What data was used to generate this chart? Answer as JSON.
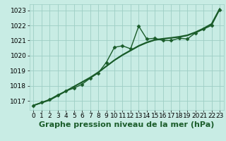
{
  "background_color": "#c8ece4",
  "grid_color": "#9dcec4",
  "line_color": "#1a5c2a",
  "xlabel": "Graphe pression niveau de la mer (hPa)",
  "xlabel_fontsize": 8,
  "tick_fontsize": 6.5,
  "xlim": [
    -0.5,
    23.5
  ],
  "ylim": [
    1016.4,
    1023.4
  ],
  "yticks": [
    1017,
    1018,
    1019,
    1020,
    1021,
    1022,
    1023
  ],
  "xticks": [
    0,
    1,
    2,
    3,
    4,
    5,
    6,
    7,
    8,
    9,
    10,
    11,
    12,
    13,
    14,
    15,
    16,
    17,
    18,
    19,
    20,
    21,
    22,
    23
  ],
  "series": [
    {
      "x": [
        0,
        1,
        2,
        3,
        4,
        5,
        6,
        7,
        8,
        9,
        10,
        11,
        12,
        13,
        14,
        15,
        16,
        17,
        18,
        19,
        20,
        21,
        22,
        23
      ],
      "y": [
        1016.7,
        1016.9,
        1017.1,
        1017.4,
        1017.65,
        1017.85,
        1018.1,
        1018.5,
        1018.85,
        1019.55,
        1020.55,
        1020.65,
        1020.45,
        1021.95,
        1021.1,
        1021.15,
        1021.0,
        1021.0,
        1021.15,
        1021.1,
        1021.5,
        1021.75,
        1022.0,
        1023.05
      ],
      "marker": "D",
      "marker_size": 2.5,
      "linewidth": 1.0,
      "linestyle": "-"
    },
    {
      "x": [
        0,
        1,
        2,
        3,
        4,
        5,
        6,
        7,
        8,
        9,
        10,
        11,
        12,
        13,
        14,
        15,
        16,
        17,
        18,
        19,
        20,
        21,
        22,
        23
      ],
      "y": [
        1016.7,
        1016.88,
        1017.06,
        1017.35,
        1017.65,
        1017.95,
        1018.25,
        1018.55,
        1018.9,
        1019.3,
        1019.7,
        1020.05,
        1020.35,
        1020.65,
        1020.88,
        1021.05,
        1021.12,
        1021.18,
        1021.25,
        1021.35,
        1021.55,
        1021.8,
        1022.1,
        1023.1
      ],
      "marker": "None",
      "marker_size": 0,
      "linewidth": 1.4,
      "linestyle": "-"
    },
    {
      "x": [
        0,
        1,
        2,
        3,
        4,
        5,
        6,
        7,
        8,
        9,
        10,
        11,
        12,
        13,
        14,
        15,
        16,
        17,
        18,
        19,
        20,
        21,
        22,
        23
      ],
      "y": [
        1016.7,
        1016.88,
        1017.06,
        1017.35,
        1017.65,
        1017.95,
        1018.22,
        1018.52,
        1018.87,
        1019.28,
        1019.68,
        1020.02,
        1020.32,
        1020.62,
        1020.85,
        1021.02,
        1021.1,
        1021.16,
        1021.22,
        1021.32,
        1021.52,
        1021.77,
        1022.07,
        1023.07
      ],
      "marker": "None",
      "marker_size": 0,
      "linewidth": 1.0,
      "linestyle": "-"
    }
  ]
}
